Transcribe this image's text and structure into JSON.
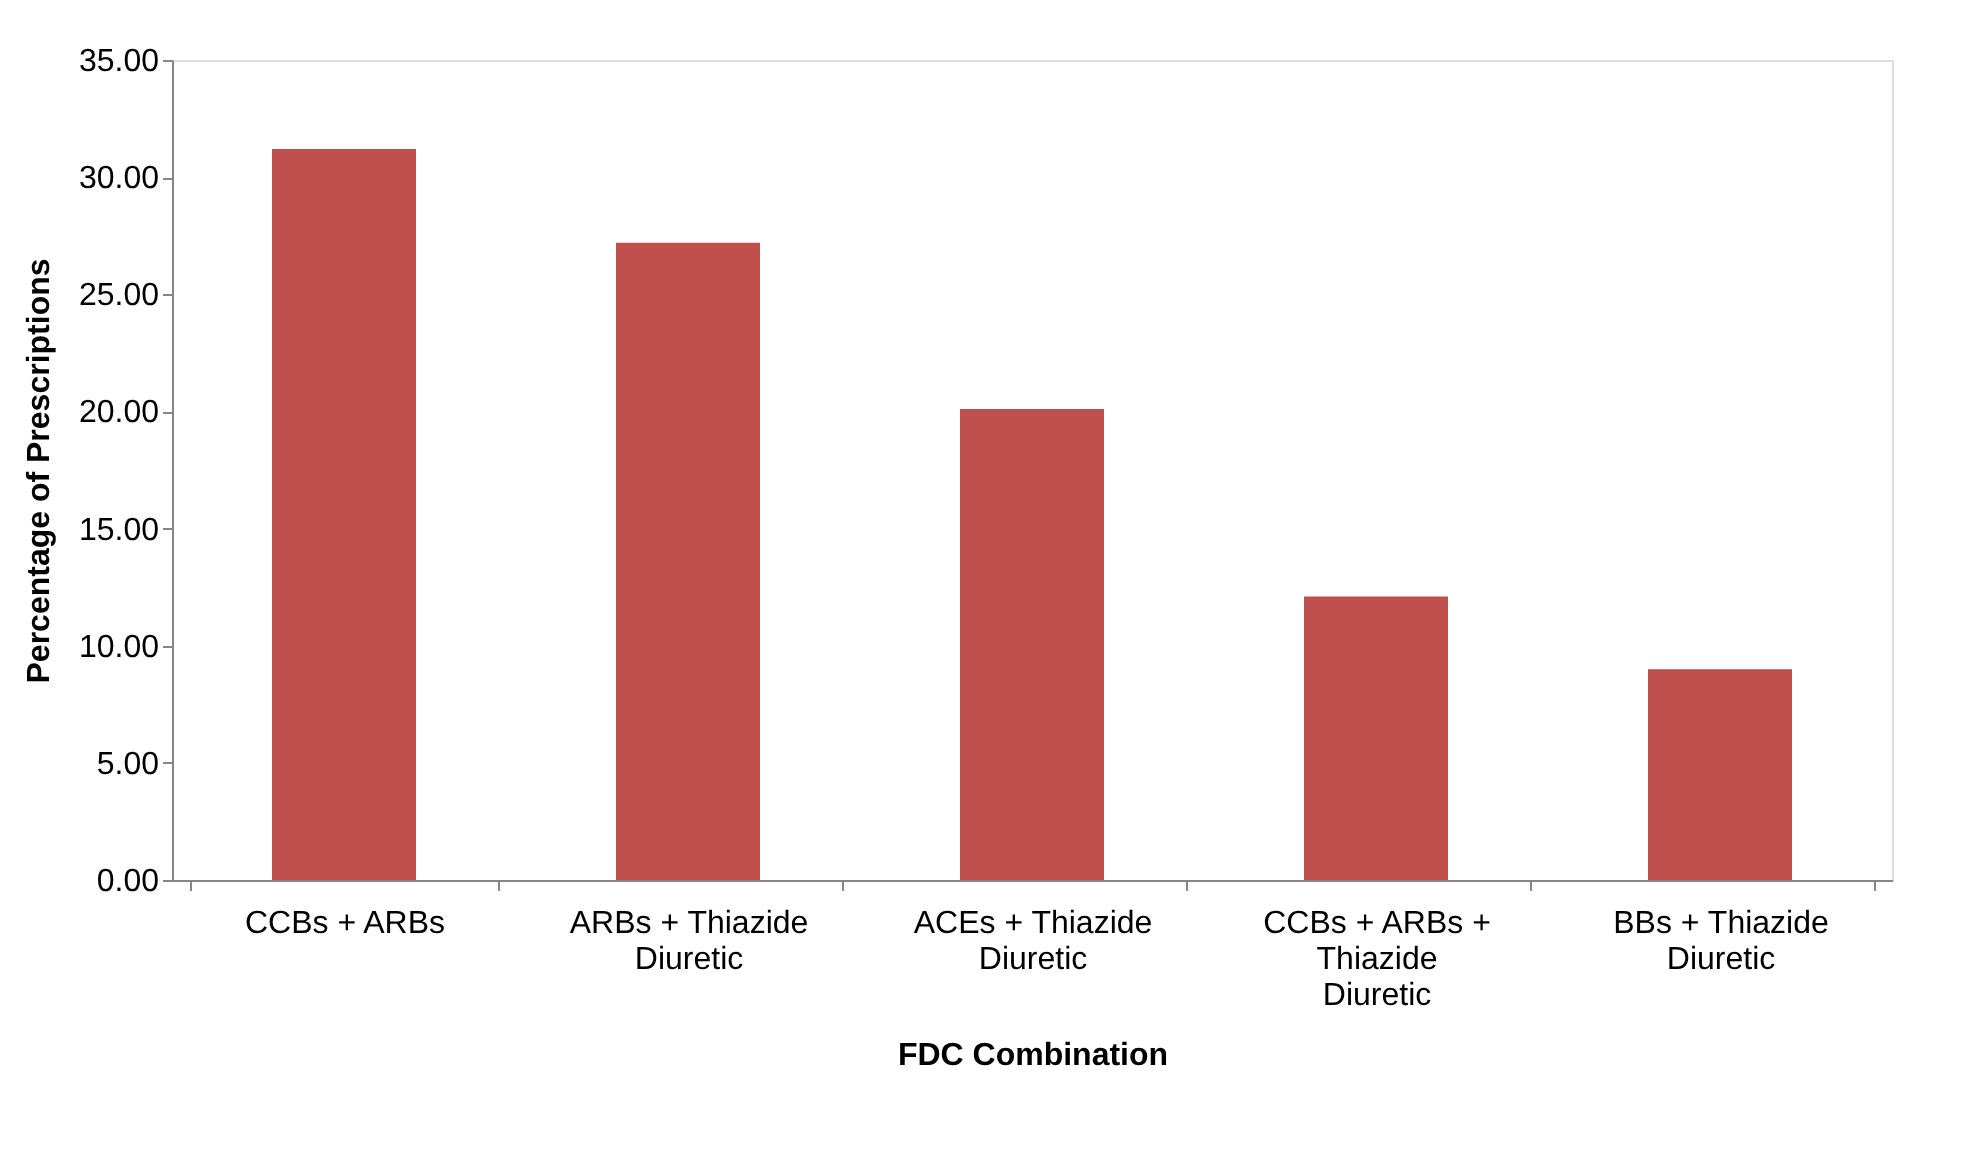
{
  "chart_data": {
    "type": "bar",
    "xlabel": "FDC Combination",
    "ylabel": "Percentage of Prescriptions",
    "categories": [
      "CCBs + ARBs",
      "ARBs + Thiazide Diuretic",
      "ACEs + Thiazide Diuretic",
      "CCBs + ARBs + Thiazide Diuretic",
      "BBs + Thiazide Diuretic"
    ],
    "values": [
      31.2,
      27.2,
      20.1,
      12.1,
      9.0
    ],
    "color": "#c0504d",
    "ylim": [
      0,
      35
    ],
    "yticks": [
      {
        "value": 0,
        "label": "0.00"
      },
      {
        "value": 5,
        "label": "5.00"
      },
      {
        "value": 10,
        "label": "10.00"
      },
      {
        "value": 15,
        "label": "15.00"
      },
      {
        "value": 20,
        "label": "20.00"
      },
      {
        "value": 25,
        "label": "25.00"
      },
      {
        "value": 30,
        "label": "30.00"
      },
      {
        "value": 35,
        "label": "35.00"
      }
    ],
    "grid": false
  }
}
